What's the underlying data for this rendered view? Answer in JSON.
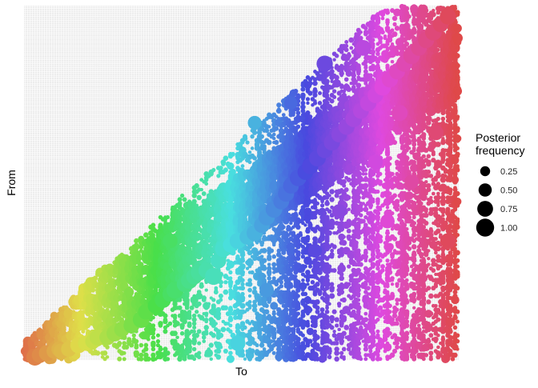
{
  "chart_data": {
    "type": "scatter",
    "title": "",
    "xlabel": "To",
    "ylabel": "From",
    "grid": true,
    "legend_position": "right",
    "legend": {
      "title_lines": [
        "Posterior",
        "frequency"
      ],
      "entries": [
        {
          "label": "0.25",
          "value": 0.25
        },
        {
          "label": "0.50",
          "value": 0.5
        },
        {
          "label": "0.75",
          "value": 0.75
        },
        {
          "label": "1.00",
          "value": 1.0
        }
      ]
    },
    "n_categories": 180,
    "color_encoding": "hue_by_to_index",
    "big_points": [
      {
        "x": 4,
        "y": 1,
        "v": 0.9
      },
      {
        "x": 6,
        "y": 2,
        "v": 0.75
      },
      {
        "x": 9,
        "y": 3,
        "v": 0.8
      },
      {
        "x": 12,
        "y": 4,
        "v": 0.7
      },
      {
        "x": 14,
        "y": 5,
        "v": 0.7
      },
      {
        "x": 15,
        "y": 4,
        "v": 0.75
      },
      {
        "x": 18,
        "y": 5,
        "v": 0.7
      },
      {
        "x": 22,
        "y": 7,
        "v": 0.8
      },
      {
        "x": 25,
        "y": 8,
        "v": 0.7
      },
      {
        "x": 28,
        "y": 9,
        "v": 0.7
      },
      {
        "x": 30,
        "y": 11,
        "v": 0.8
      },
      {
        "x": 34,
        "y": 11,
        "v": 0.75
      },
      {
        "x": 37,
        "y": 13,
        "v": 0.8
      },
      {
        "x": 40,
        "y": 15,
        "v": 0.7
      },
      {
        "x": 44,
        "y": 17,
        "v": 0.75
      },
      {
        "x": 48,
        "y": 20,
        "v": 0.85
      },
      {
        "x": 50,
        "y": 24,
        "v": 0.75
      },
      {
        "x": 54,
        "y": 27,
        "v": 0.75
      },
      {
        "x": 57,
        "y": 30,
        "v": 0.8
      },
      {
        "x": 60,
        "y": 33,
        "v": 0.7
      },
      {
        "x": 62,
        "y": 35,
        "v": 0.9
      },
      {
        "x": 66,
        "y": 38,
        "v": 0.75
      },
      {
        "x": 68,
        "y": 40,
        "v": 0.9
      },
      {
        "x": 70,
        "y": 42,
        "v": 0.8
      },
      {
        "x": 72,
        "y": 44,
        "v": 0.85
      },
      {
        "x": 75,
        "y": 45,
        "v": 0.75
      },
      {
        "x": 78,
        "y": 42,
        "v": 0.9
      },
      {
        "x": 80,
        "y": 50,
        "v": 0.75
      },
      {
        "x": 82,
        "y": 56,
        "v": 0.85
      },
      {
        "x": 85,
        "y": 58,
        "v": 0.7
      },
      {
        "x": 88,
        "y": 60,
        "v": 0.8
      },
      {
        "x": 92,
        "y": 62,
        "v": 0.75
      },
      {
        "x": 95,
        "y": 64,
        "v": 0.8
      },
      {
        "x": 98,
        "y": 68,
        "v": 0.75
      },
      {
        "x": 100,
        "y": 72,
        "v": 0.8
      },
      {
        "x": 103,
        "y": 76,
        "v": 0.85
      },
      {
        "x": 106,
        "y": 80,
        "v": 0.75
      },
      {
        "x": 108,
        "y": 84,
        "v": 0.8
      },
      {
        "x": 110,
        "y": 88,
        "v": 0.75
      },
      {
        "x": 113,
        "y": 92,
        "v": 0.85
      },
      {
        "x": 116,
        "y": 95,
        "v": 0.75
      },
      {
        "x": 118,
        "y": 98,
        "v": 0.8
      },
      {
        "x": 121,
        "y": 102,
        "v": 0.85
      },
      {
        "x": 124,
        "y": 106,
        "v": 0.75
      },
      {
        "x": 127,
        "y": 110,
        "v": 0.8
      },
      {
        "x": 130,
        "y": 114,
        "v": 0.75
      },
      {
        "x": 133,
        "y": 118,
        "v": 0.8
      },
      {
        "x": 136,
        "y": 122,
        "v": 0.85
      },
      {
        "x": 139,
        "y": 126,
        "v": 0.75
      },
      {
        "x": 142,
        "y": 130,
        "v": 0.8
      },
      {
        "x": 145,
        "y": 134,
        "v": 0.75
      },
      {
        "x": 148,
        "y": 138,
        "v": 0.85
      },
      {
        "x": 151,
        "y": 142,
        "v": 0.8
      },
      {
        "x": 154,
        "y": 146,
        "v": 0.75
      },
      {
        "x": 157,
        "y": 150,
        "v": 0.8
      },
      {
        "x": 160,
        "y": 154,
        "v": 0.85
      },
      {
        "x": 163,
        "y": 158,
        "v": 0.75
      },
      {
        "x": 166,
        "y": 162,
        "v": 0.8
      },
      {
        "x": 169,
        "y": 166,
        "v": 0.85
      },
      {
        "x": 172,
        "y": 170,
        "v": 0.75
      },
      {
        "x": 175,
        "y": 174,
        "v": 0.8
      },
      {
        "x": 124,
        "y": 150,
        "v": 0.8
      },
      {
        "x": 140,
        "y": 158,
        "v": 0.75
      },
      {
        "x": 155,
        "y": 125,
        "v": 0.8
      },
      {
        "x": 170,
        "y": 115,
        "v": 0.7
      },
      {
        "x": 150,
        "y": 70,
        "v": 0.6
      },
      {
        "x": 88,
        "y": 8,
        "v": 0.7
      },
      {
        "x": 100,
        "y": 35,
        "v": 0.6
      },
      {
        "x": 120,
        "y": 55,
        "v": 0.55
      },
      {
        "x": 160,
        "y": 90,
        "v": 0.6
      },
      {
        "x": 145,
        "y": 100,
        "v": 0.65
      },
      {
        "x": 175,
        "y": 60,
        "v": 0.7
      },
      {
        "x": 60,
        "y": 60,
        "v": 0.65
      },
      {
        "x": 95,
        "y": 120,
        "v": 0.55
      },
      {
        "x": 130,
        "y": 75,
        "v": 0.6
      },
      {
        "x": 110,
        "y": 130,
        "v": 0.5
      }
    ]
  }
}
